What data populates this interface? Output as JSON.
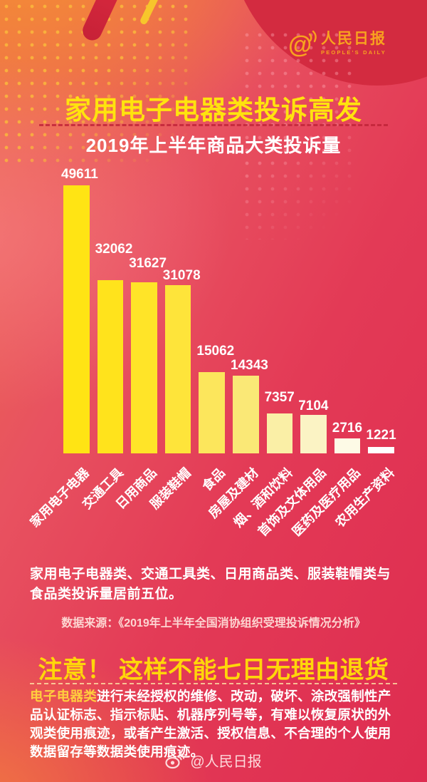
{
  "brand": {
    "name": "人民日报",
    "sub": "PEOPLE'S DAILY",
    "color": "#F8A21F"
  },
  "header": {
    "title": "家用电子电器类投诉高发",
    "subtitle": "2019年上半年商品大类投诉量",
    "title_color": "#FFE30E"
  },
  "chart_data": {
    "type": "bar",
    "title": "2019年上半年商品大类投诉量",
    "categories": [
      "家用电子电器",
      "交通工具",
      "日用商品",
      "服装鞋帽",
      "食品",
      "房屋及建材",
      "烟、酒和饮料",
      "首饰及文体用品",
      "医药及医疗用品",
      "农用生产资料"
    ],
    "values": [
      49611,
      32062,
      31627,
      31078,
      15062,
      14343,
      7357,
      7104,
      2716,
      1221
    ],
    "bar_colors": [
      "#FFE414",
      "#FFE31C",
      "#FFE428",
      "#FEE43A",
      "#FCE65C",
      "#FAE876",
      "#FAEFA6",
      "#FBF3C4",
      "#FDFAE6",
      "#FFFFFF"
    ],
    "value_label_color": "#FFFFFF",
    "category_label_color": "#FFFFFF",
    "category_label_rotation": -45,
    "xlabel": "",
    "ylabel": "",
    "ylim": [
      0,
      49611
    ],
    "grid": false,
    "legend": false,
    "value_label_position": "above-bar",
    "label_offsets": [
      4,
      32,
      15,
      2,
      18,
      3,
      11,
      1,
      3,
      5
    ]
  },
  "summary": {
    "text": "家用电子电器类、交通工具类、日用商品类、服装鞋帽类与食品类投诉量居前五位。"
  },
  "source": {
    "text": "数据来源：《2019年上半年全国消协组织受理投诉情况分析》"
  },
  "notice": {
    "headline": "注意！ 这样不能七日无理由退货",
    "lead": "电子电器类",
    "body": "进行未经授权的维修、改动，破坏、涂改强制性产品认证标志、指示标贴、机器序列号等，有难以恢复原状的外观类使用痕迹，或者产生激活、授权信息、不合理的个人使用数据留存等数据类使用痕迹。"
  },
  "footer": {
    "handle": "@人民日报"
  }
}
